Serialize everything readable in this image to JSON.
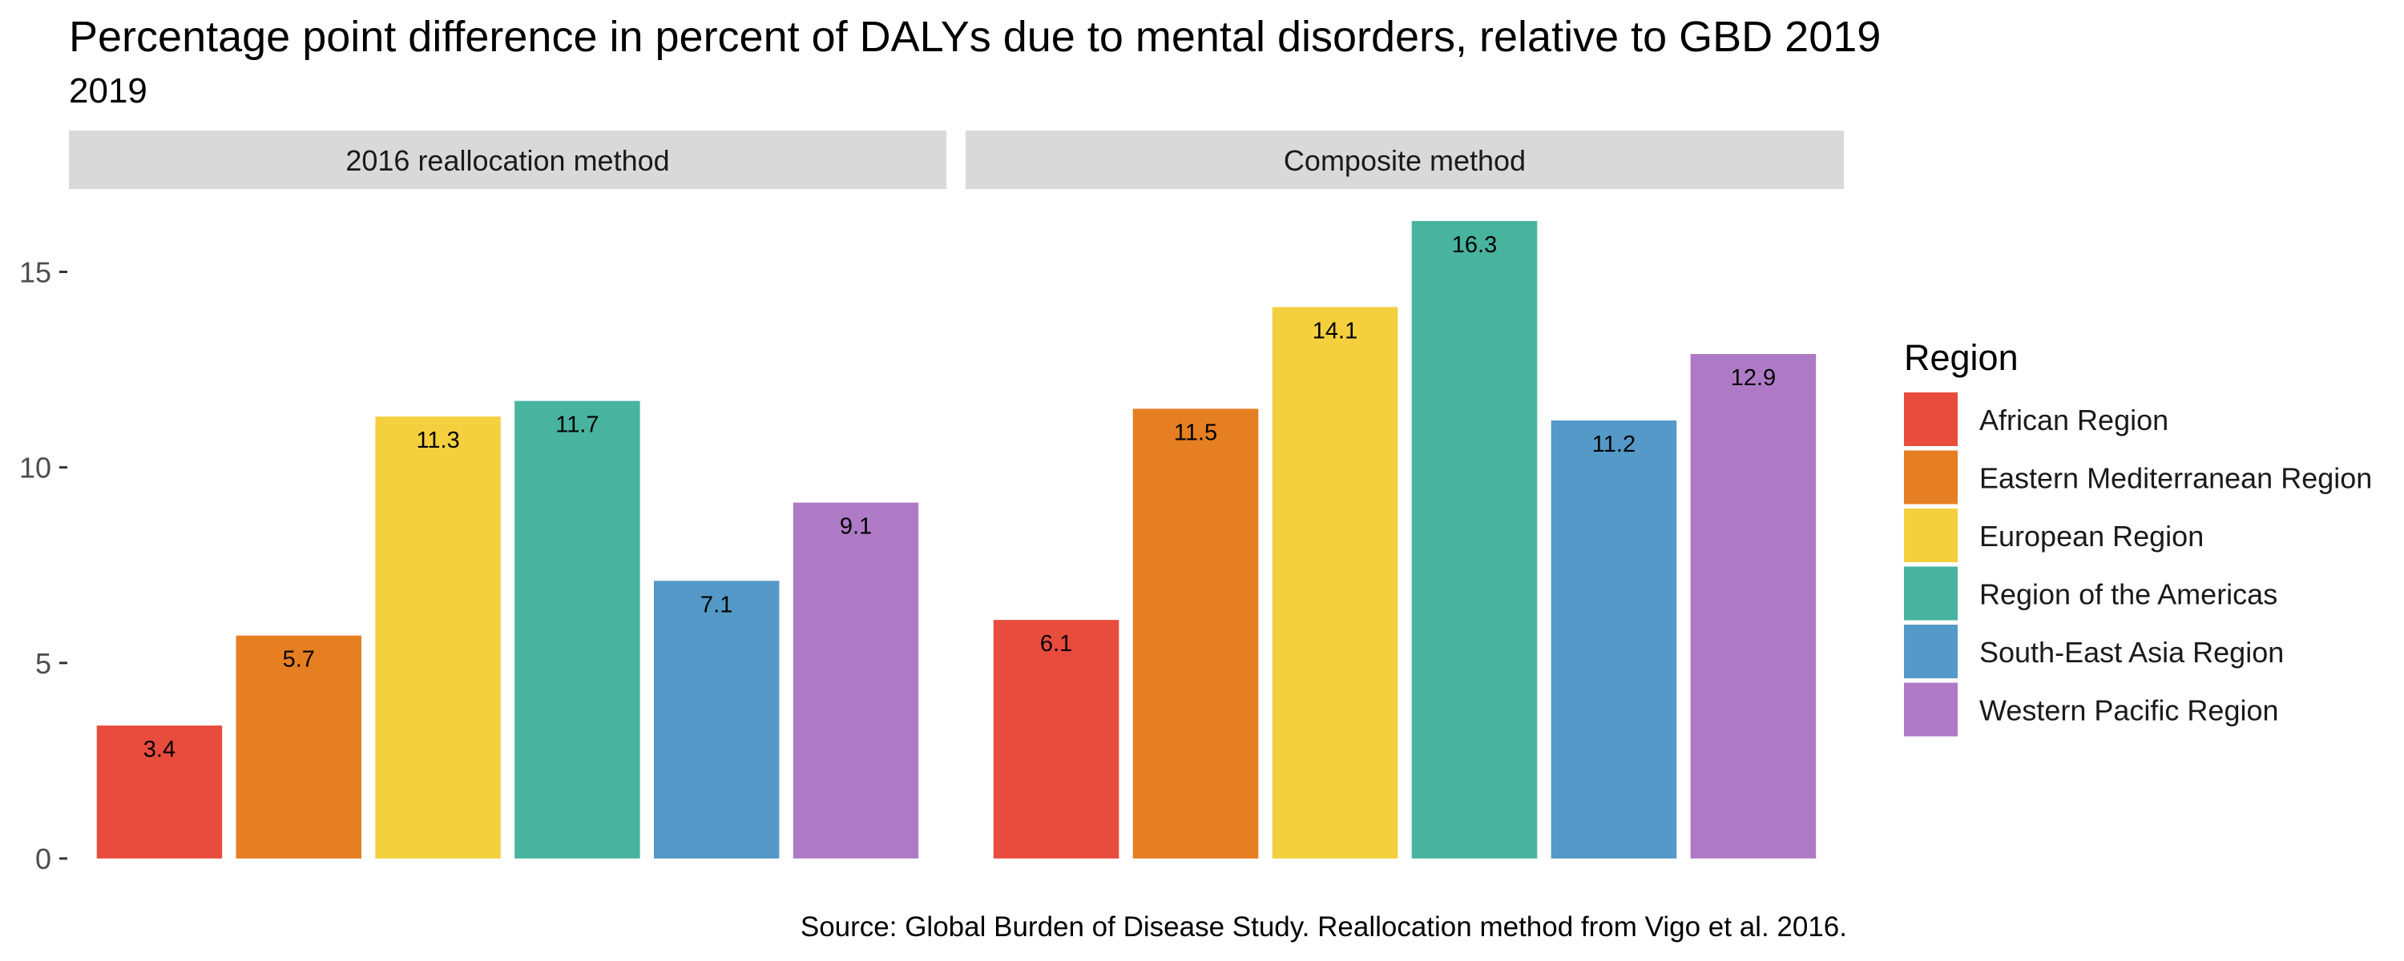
{
  "title": "Percentage point difference in percent of DALYs due to mental disorders, relative to GBD 2019",
  "subtitle": "2019",
  "caption": "Source: Global Burden of Disease Study. Reallocation method from Vigo et al. 2016.",
  "chart_data": {
    "type": "bar",
    "facets": [
      "2016 reallocation method",
      "Composite method"
    ],
    "categories": [
      "African Region",
      "Eastern Mediterranean Region",
      "European Region",
      "Region of the Americas",
      "South-East Asia Region",
      "Western Pacific Region"
    ],
    "series": [
      {
        "facet": "2016 reallocation method",
        "values": [
          3.4,
          5.7,
          11.3,
          11.7,
          7.1,
          9.1
        ]
      },
      {
        "facet": "Composite method",
        "values": [
          6.1,
          11.5,
          14.1,
          16.3,
          11.2,
          12.9
        ]
      }
    ],
    "ylim": [
      0,
      16.3
    ],
    "yticks": [
      0,
      5,
      10,
      15
    ],
    "xlabel": "",
    "ylabel": "",
    "legend": {
      "title": "Region",
      "position": "right"
    },
    "colors": [
      "#e84c3d",
      "#e67e22",
      "#f4d03f",
      "#48b39e",
      "#5499c7",
      "#af7ac5"
    ],
    "grid": false,
    "strip_color": "#d9d9d9"
  }
}
